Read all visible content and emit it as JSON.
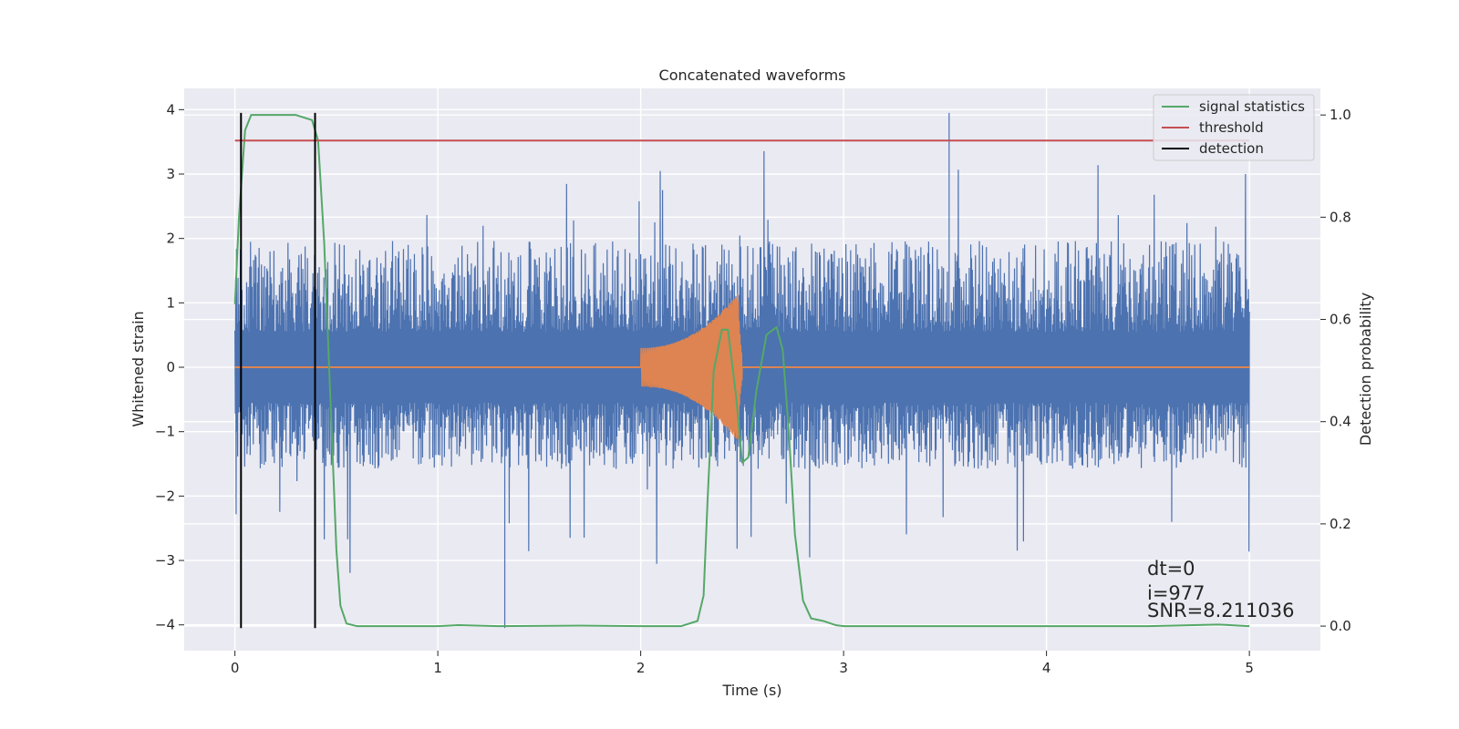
{
  "chart_data": {
    "type": "line",
    "title": "Concatenated waveforms",
    "xlabel": "Time (s)",
    "ylabel": "Whitened strain",
    "y2label": "Detection probability",
    "xlim": [
      -0.25,
      5.35
    ],
    "ylim": [
      -4.4,
      4.33
    ],
    "y2lim": [
      -0.048,
      1.052
    ],
    "xticks": [
      0,
      1,
      2,
      3,
      4,
      5
    ],
    "yticks": [
      -4,
      -3,
      -2,
      -1,
      0,
      1,
      2,
      3,
      4
    ],
    "y2ticks": [
      0.0,
      0.2,
      0.4,
      0.6,
      0.8,
      1.0
    ],
    "grid": true,
    "legend_position": "top-right",
    "colors": {
      "background": "#eaeaf2",
      "strain": "#4c72b0",
      "template": "#dd8452",
      "signal": "#55a868",
      "threshold": "#c44e52",
      "detection": "#000000"
    },
    "series": [
      {
        "name": "signal statistics",
        "axis": "right",
        "color": "#55a868",
        "points": [
          [
            0,
            0.63
          ],
          [
            0.02,
            0.8
          ],
          [
            0.05,
            0.97
          ],
          [
            0.08,
            1.0
          ],
          [
            0.3,
            1.0
          ],
          [
            0.38,
            0.99
          ],
          [
            0.41,
            0.95
          ],
          [
            0.44,
            0.75
          ],
          [
            0.47,
            0.45
          ],
          [
            0.5,
            0.15
          ],
          [
            0.52,
            0.04
          ],
          [
            0.55,
            0.005
          ],
          [
            0.6,
            0.0
          ],
          [
            1.0,
            0.0
          ],
          [
            1.1,
            0.002
          ],
          [
            1.3,
            0.0
          ],
          [
            1.7,
            0.001
          ],
          [
            2.0,
            0.0
          ],
          [
            2.2,
            0.0
          ],
          [
            2.28,
            0.01
          ],
          [
            2.31,
            0.06
          ],
          [
            2.33,
            0.25
          ],
          [
            2.36,
            0.5
          ],
          [
            2.4,
            0.58
          ],
          [
            2.43,
            0.58
          ],
          [
            2.47,
            0.45
          ],
          [
            2.5,
            0.32
          ],
          [
            2.53,
            0.33
          ],
          [
            2.57,
            0.46
          ],
          [
            2.62,
            0.57
          ],
          [
            2.67,
            0.585
          ],
          [
            2.7,
            0.54
          ],
          [
            2.73,
            0.38
          ],
          [
            2.76,
            0.18
          ],
          [
            2.8,
            0.05
          ],
          [
            2.84,
            0.015
          ],
          [
            2.9,
            0.01
          ],
          [
            2.96,
            0.002
          ],
          [
            3.0,
            0.0
          ],
          [
            4.5,
            0.0
          ],
          [
            4.85,
            0.003
          ],
          [
            5.0,
            0.0
          ]
        ]
      },
      {
        "name": "threshold",
        "axis": "right",
        "color": "#c44e52",
        "points": [
          [
            0,
            0.95
          ],
          [
            5,
            0.95
          ]
        ]
      },
      {
        "name": "detection",
        "axis": "left",
        "color": "#000000",
        "vlines": [
          0.03,
          0.395
        ],
        "span": [
          -4.05,
          3.95
        ]
      }
    ],
    "strain": {
      "axis": "left",
      "color": "#4c72b0",
      "x_range": [
        0,
        5
      ],
      "typical_envelope": [
        -1.6,
        2.0
      ],
      "max": 3.95,
      "min": -4.05
    },
    "template": {
      "axis": "left",
      "color": "#dd8452",
      "x_range": [
        2.0,
        2.5
      ],
      "amplitude_start": 0.3,
      "amplitude_peak": 1.15,
      "peak_time": 2.48
    },
    "annotations": {
      "dt": "dt=0",
      "i": "i=977",
      "snr": "SNR=8.211036"
    },
    "legend": [
      "signal statistics",
      "threshold",
      "detection"
    ]
  }
}
